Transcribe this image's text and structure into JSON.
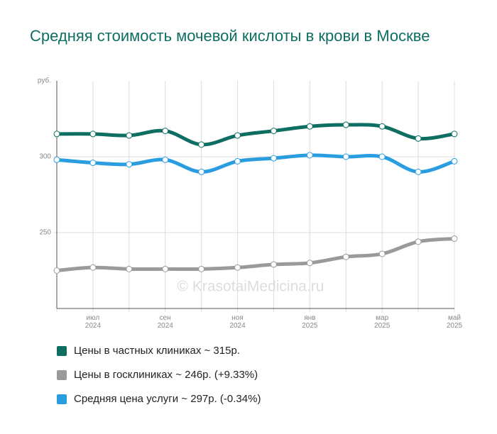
{
  "chart_data": {
    "type": "line",
    "title": "Средняя стоимость мочевой кислоты в крови в Москве",
    "watermark": "© KrasotaiMedicina.ru",
    "categories": [
      null,
      "июл 2024",
      null,
      "сен 2024",
      null,
      "ноя 2024",
      null,
      "янв 2025",
      null,
      "мар 2025",
      null,
      "май 2025"
    ],
    "series": [
      {
        "name": "Цены в частных клиниках ~ 315р.",
        "color": "#0e6e62",
        "values": [
          315,
          315,
          314,
          317,
          308,
          314,
          317,
          320,
          321,
          320,
          312,
          315
        ]
      },
      {
        "name": "Цены в госклиниках ~ 246р. (+9.33%)",
        "color": "#9a9a9a",
        "values": [
          225,
          227,
          226,
          226,
          226,
          227,
          229,
          230,
          234,
          236,
          244,
          246
        ]
      },
      {
        "name": "Средняя цена услуги ~ 297р. (-0.34%)",
        "color": "#2a9de0",
        "values": [
          298,
          296,
          295,
          298,
          290,
          297,
          299,
          301,
          300,
          300,
          290,
          297
        ]
      }
    ],
    "ylim": [
      200,
      350
    ],
    "yticks": [
      250,
      300,
      {
        "value": 350,
        "label": "руб."
      }
    ],
    "grid": true
  }
}
